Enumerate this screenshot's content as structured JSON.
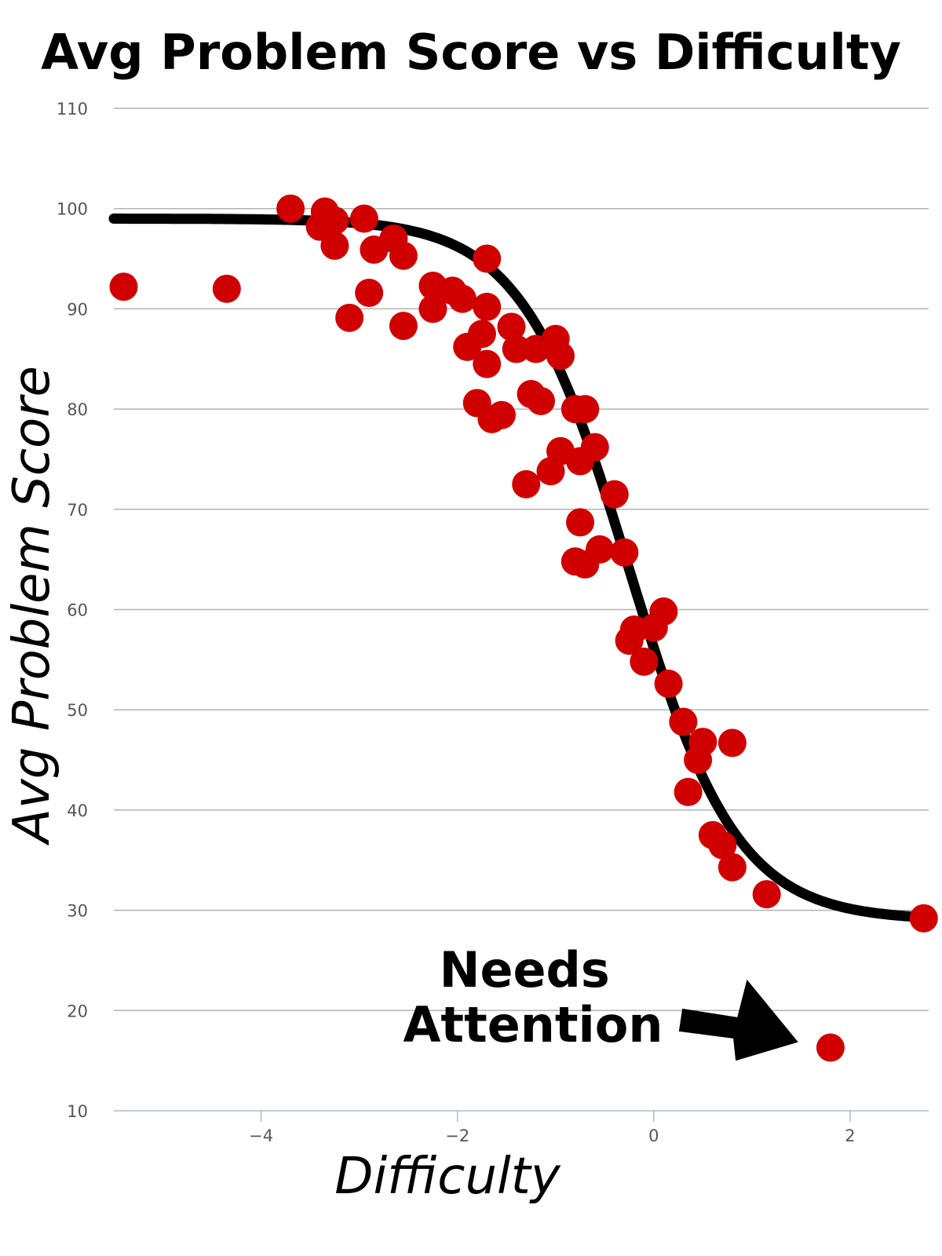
{
  "chart_data": {
    "type": "scatter",
    "title": "Avg Problem Score vs Difficulty",
    "xlabel": "Difficulty",
    "ylabel": "Avg Problem Score",
    "xlim": [
      -5.5,
      2.8
    ],
    "ylim": [
      10,
      110
    ],
    "x_ticks": [
      -4,
      -2,
      0,
      2
    ],
    "x_tick_labels": [
      "−4",
      "−2",
      "0",
      "2"
    ],
    "y_ticks": [
      10,
      20,
      30,
      40,
      50,
      60,
      70,
      80,
      90,
      100,
      110
    ],
    "grid": true,
    "point_color": "#d10000",
    "fit_color": "#000000",
    "fit": {
      "type": "logistic",
      "lower": 29,
      "upper": 99,
      "midpoint": -0.25,
      "scale": 0.55
    },
    "points": [
      {
        "x": -5.4,
        "y": 92.2
      },
      {
        "x": -4.35,
        "y": 92.0
      },
      {
        "x": -3.7,
        "y": 100.0
      },
      {
        "x": -3.4,
        "y": 98.2
      },
      {
        "x": -3.35,
        "y": 99.7
      },
      {
        "x": -3.25,
        "y": 98.8
      },
      {
        "x": -3.25,
        "y": 96.3
      },
      {
        "x": -3.1,
        "y": 89.1
      },
      {
        "x": -2.95,
        "y": 99.0
      },
      {
        "x": -2.85,
        "y": 95.9
      },
      {
        "x": -2.9,
        "y": 91.6
      },
      {
        "x": -2.65,
        "y": 97.0
      },
      {
        "x": -2.55,
        "y": 95.3
      },
      {
        "x": -2.55,
        "y": 88.3
      },
      {
        "x": -2.25,
        "y": 92.3
      },
      {
        "x": -2.25,
        "y": 90.0
      },
      {
        "x": -2.05,
        "y": 91.8
      },
      {
        "x": -1.95,
        "y": 91.0
      },
      {
        "x": -1.9,
        "y": 86.2
      },
      {
        "x": -1.75,
        "y": 87.5
      },
      {
        "x": -1.7,
        "y": 90.2
      },
      {
        "x": -1.7,
        "y": 95.0
      },
      {
        "x": -1.7,
        "y": 84.5
      },
      {
        "x": -1.8,
        "y": 80.6
      },
      {
        "x": -1.65,
        "y": 79.0
      },
      {
        "x": -1.55,
        "y": 79.4
      },
      {
        "x": -1.45,
        "y": 88.2
      },
      {
        "x": -1.4,
        "y": 86.0
      },
      {
        "x": -1.2,
        "y": 86.0
      },
      {
        "x": -1.25,
        "y": 81.5
      },
      {
        "x": -1.15,
        "y": 80.8
      },
      {
        "x": -1.3,
        "y": 72.5
      },
      {
        "x": -1.0,
        "y": 87.0
      },
      {
        "x": -0.95,
        "y": 85.3
      },
      {
        "x": -1.05,
        "y": 73.8
      },
      {
        "x": -0.95,
        "y": 75.8
      },
      {
        "x": -0.8,
        "y": 80.0
      },
      {
        "x": -0.7,
        "y": 80.0
      },
      {
        "x": -0.75,
        "y": 74.8
      },
      {
        "x": -0.6,
        "y": 76.2
      },
      {
        "x": -0.4,
        "y": 71.5
      },
      {
        "x": -0.75,
        "y": 68.7
      },
      {
        "x": -0.8,
        "y": 64.8
      },
      {
        "x": -0.7,
        "y": 64.5
      },
      {
        "x": -0.55,
        "y": 66.0
      },
      {
        "x": -0.3,
        "y": 65.7
      },
      {
        "x": 0.1,
        "y": 59.8
      },
      {
        "x": 0.0,
        "y": 58.2
      },
      {
        "x": -0.2,
        "y": 58.0
      },
      {
        "x": -0.25,
        "y": 56.9
      },
      {
        "x": -0.1,
        "y": 54.8
      },
      {
        "x": 0.15,
        "y": 52.6
      },
      {
        "x": 0.3,
        "y": 48.8
      },
      {
        "x": 0.5,
        "y": 46.8
      },
      {
        "x": 0.45,
        "y": 45.0
      },
      {
        "x": 0.8,
        "y": 46.7
      },
      {
        "x": 0.35,
        "y": 41.8
      },
      {
        "x": 0.6,
        "y": 37.5
      },
      {
        "x": 0.7,
        "y": 36.5
      },
      {
        "x": 0.8,
        "y": 34.3
      },
      {
        "x": 1.15,
        "y": 31.6
      },
      {
        "x": 2.75,
        "y": 29.2
      },
      {
        "x": 1.8,
        "y": 16.3
      }
    ],
    "annotations": [
      {
        "text": "Needs Attention",
        "lines": [
          "Needs",
          "Attention"
        ],
        "target": {
          "x": 1.8,
          "y": 16.3
        },
        "arrow": true
      }
    ]
  }
}
